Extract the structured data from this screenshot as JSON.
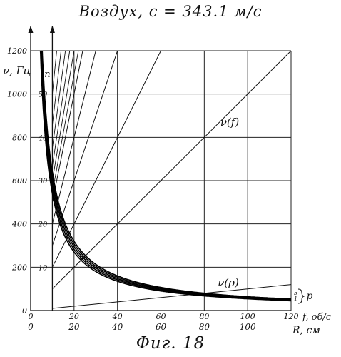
{
  "header": {
    "title": "Воздух,   c = 343.1 м/с"
  },
  "footer": {
    "caption": "Фиг. 18"
  },
  "chart_data": {
    "type": "line",
    "title": "Воздух,   c = 343.1 м/с",
    "ylabel": "ν, Гц",
    "ylim": [
      0,
      1200
    ],
    "y_ticks": [
      0,
      200,
      400,
      600,
      800,
      1000,
      1200
    ],
    "grid": true,
    "x_axes": [
      {
        "label": "f, об/с",
        "range": [
          0,
          120
        ],
        "ticks": [
          0,
          20,
          40,
          60,
          80,
          100,
          120
        ]
      },
      {
        "label": "R, см",
        "range": [
          0,
          120
        ],
        "ticks": [
          0,
          20,
          40,
          60,
          80,
          100,
          120
        ]
      }
    ],
    "n_axis": {
      "label": "n",
      "at_f": 10,
      "ticks": [
        10,
        20,
        30,
        40,
        50
      ]
    },
    "curve_labels": {
      "linear": "ν(f)",
      "hyperbolic": "ν(ρ)",
      "p_group": "p",
      "p_values": [
        "5",
        "1"
      ]
    },
    "series": [
      {
        "kind": "linear",
        "n": 1,
        "points": [
          [
            0,
            0
          ],
          [
            120,
            120
          ]
        ]
      },
      {
        "kind": "linear",
        "n": 10,
        "points": [
          [
            0,
            0
          ],
          [
            120,
            1200
          ]
        ]
      },
      {
        "kind": "linear",
        "n": 20,
        "points": [
          [
            0,
            0
          ],
          [
            60,
            1200
          ]
        ]
      },
      {
        "kind": "linear",
        "n": 30,
        "points": [
          [
            0,
            0
          ],
          [
            40,
            1200
          ]
        ]
      },
      {
        "kind": "linear",
        "n": 40,
        "points": [
          [
            0,
            0
          ],
          [
            30,
            1200
          ]
        ]
      },
      {
        "kind": "linear",
        "n": 50,
        "points": [
          [
            0,
            0
          ],
          [
            24,
            1200
          ]
        ]
      },
      {
        "kind": "hyperbolic",
        "p": 1,
        "k": 5400
      },
      {
        "kind": "hyperbolic",
        "p": 2,
        "k": 5650
      },
      {
        "kind": "hyperbolic",
        "p": 3,
        "k": 5900
      },
      {
        "kind": "hyperbolic",
        "p": 4,
        "k": 6150
      },
      {
        "kind": "hyperbolic",
        "p": 5,
        "k": 6400
      }
    ],
    "extra_rays_to_top": [
      12,
      14,
      16,
      18,
      20,
      22
    ]
  }
}
